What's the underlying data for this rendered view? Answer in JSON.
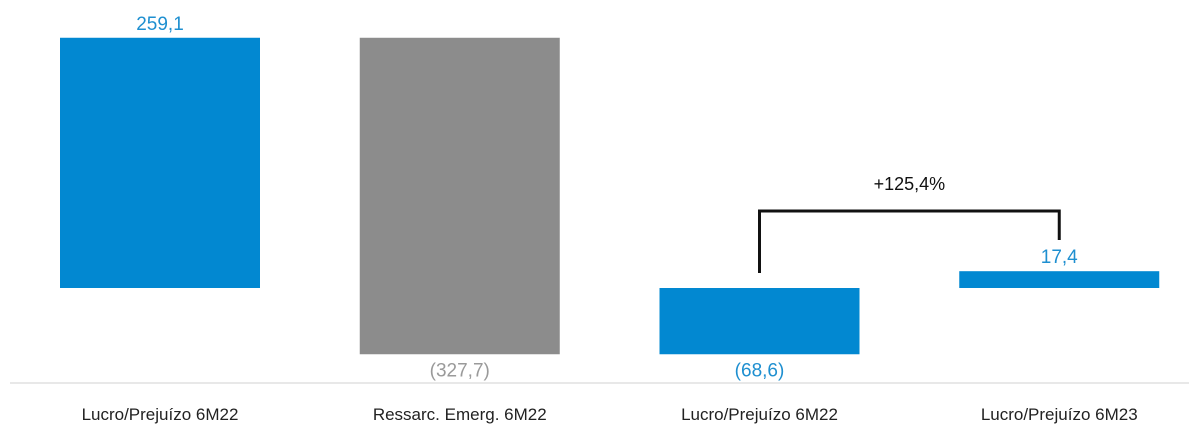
{
  "chart_data": {
    "type": "bar",
    "subtype": "waterfall",
    "categories": [
      "Lucro/Prejuízo 6M22",
      "Ressarc. Emerg. 6M22",
      "Lucro/Prejuízo 6M22",
      "Lucro/Prejuízo 6M23"
    ],
    "values": [
      259.1,
      -327.7,
      -68.6,
      17.4
    ],
    "value_labels": [
      "259,1",
      "(327,7)",
      "(68,6)",
      "17,4"
    ],
    "bar_kinds": [
      "total",
      "delta",
      "total",
      "total"
    ],
    "colors": [
      "#0288D1",
      "#8C8C8C",
      "#0288D1",
      "#0288D1"
    ],
    "label_colors": [
      "#1E8FD0",
      "#9A9A9A",
      "#1E8FD0",
      "#1E8FD0"
    ],
    "grid": false,
    "legend": "none",
    "annotation": {
      "text": "+125,4%",
      "from_category": 2,
      "to_category": 3
    }
  }
}
